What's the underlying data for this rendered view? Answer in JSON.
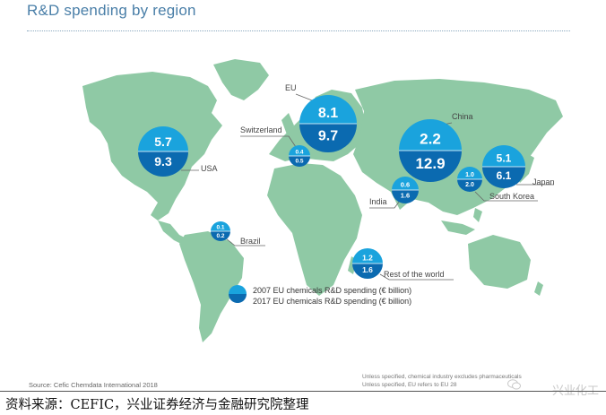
{
  "header": {
    "title": "R&D spending by region"
  },
  "chart_data": {
    "type": "bubble-map",
    "title": "R&D spending by region",
    "legend": [
      {
        "label": "2007 EU chemicals R&D spending (€ billion)",
        "color": "#1aa3dd"
      },
      {
        "label": "2017 EU chemicals R&D spending (€ billion)",
        "color": "#0b6ab0"
      }
    ],
    "series_names": [
      "2007",
      "2017"
    ],
    "regions": [
      {
        "name": "USA",
        "v2007": "5.7",
        "v2017": "9.3"
      },
      {
        "name": "EU",
        "v2007": "8.1",
        "v2017": "9.7"
      },
      {
        "name": "Switzerland",
        "v2007": "0.4",
        "v2017": "0.5"
      },
      {
        "name": "China",
        "v2007": "2.2",
        "v2017": "12.9"
      },
      {
        "name": "Japan",
        "v2007": "5.1",
        "v2017": "6.1"
      },
      {
        "name": "South Korea",
        "v2007": "1.0",
        "v2017": "2.0"
      },
      {
        "name": "India",
        "v2007": "0.6",
        "v2017": "1.6"
      },
      {
        "name": "Brazil",
        "v2007": "0.1",
        "v2017": "0.2"
      },
      {
        "name": "Rest of the world",
        "v2007": "1.2",
        "v2017": "1.6"
      }
    ],
    "colors": {
      "land": "#8fc9a5",
      "top": "#1aa3dd",
      "bottom": "#0b6ab0",
      "leader": "#666666"
    }
  },
  "source": "Source: Cefic Chemdata International 2018",
  "notes": [
    "Unless specified, chemical industry excludes pharmaceuticals",
    "Unless specified, EU refers to EU 28"
  ],
  "footer": "资料来源：CEFIC，兴业证券经济与金融研究院整理",
  "watermark": "兴业化工"
}
